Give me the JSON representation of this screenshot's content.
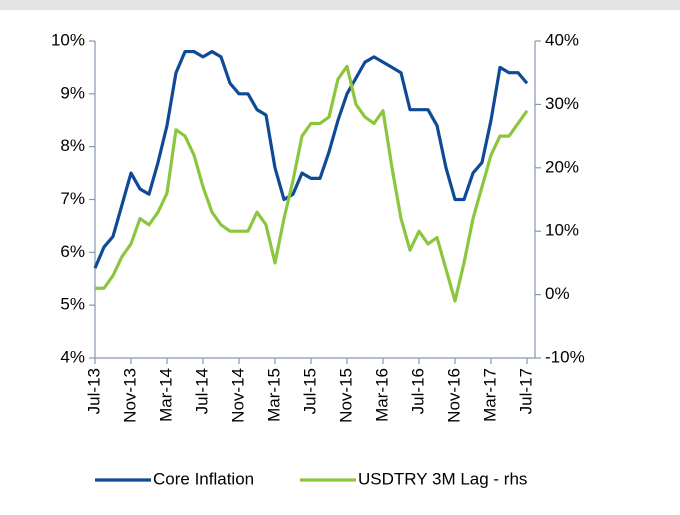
{
  "chart_data": {
    "type": "line",
    "categories": [
      "Jul-13",
      null,
      null,
      null,
      "Nov-13",
      null,
      null,
      null,
      "Mar-14",
      null,
      null,
      null,
      "Jul-14",
      null,
      null,
      null,
      "Nov-14",
      null,
      null,
      null,
      "Mar-15",
      null,
      null,
      null,
      "Jul-15",
      null,
      null,
      null,
      "Nov-15",
      null,
      null,
      null,
      "Mar-16",
      null,
      null,
      null,
      "Jul-16",
      null,
      null,
      null,
      "Nov-16",
      null,
      null,
      null,
      "Mar-17",
      null,
      null,
      null,
      "Jul-17"
    ],
    "series": [
      {
        "name": "Core Inflation",
        "color": "#0f4a97",
        "values": [
          5.7,
          6.1,
          6.3,
          6.9,
          7.5,
          7.2,
          7.1,
          7.7,
          8.4,
          9.4,
          9.8,
          9.8,
          9.7,
          9.8,
          9.7,
          9.2,
          9.0,
          9.0,
          8.7,
          8.6,
          7.6,
          7.0,
          7.1,
          7.5,
          7.4,
          7.4,
          7.9,
          8.5,
          9.0,
          9.3,
          9.6,
          9.7,
          9.6,
          9.5,
          9.4,
          8.7,
          8.7,
          8.7,
          8.4,
          7.6,
          7.0,
          7.0,
          7.5,
          7.7,
          8.5,
          9.5,
          9.4,
          9.4,
          9.2
        ]
      },
      {
        "name": "USDTRY 3M Lag - rhs",
        "color": "#8cc63e",
        "axis": "y2",
        "values": [
          1,
          1,
          3,
          6,
          8,
          12,
          11,
          13,
          16,
          26,
          25,
          22,
          17,
          13,
          11,
          10,
          10,
          10,
          13,
          11,
          5,
          12,
          18,
          25,
          27,
          27,
          28,
          34,
          36,
          30,
          28,
          27,
          29,
          20,
          12,
          7,
          10,
          8,
          9,
          4,
          -1,
          5,
          12,
          17,
          22,
          25,
          25,
          27,
          29
        ]
      }
    ],
    "ylim": [
      4,
      10
    ],
    "yticks": [
      {
        "value": 4,
        "label": "4%"
      },
      {
        "value": 5,
        "label": "5%"
      },
      {
        "value": 6,
        "label": "6%"
      },
      {
        "value": 7,
        "label": "7%"
      },
      {
        "value": 8,
        "label": "8%"
      },
      {
        "value": 9,
        "label": "9%"
      },
      {
        "value": 10,
        "label": "10%"
      }
    ],
    "y2lim": [
      -10,
      40
    ],
    "y2ticks": [
      {
        "value": -10,
        "label": "-10%"
      },
      {
        "value": 0,
        "label": "0%"
      },
      {
        "value": 10,
        "label": "10%"
      },
      {
        "value": 20,
        "label": "20%"
      },
      {
        "value": 30,
        "label": "30%"
      },
      {
        "value": 40,
        "label": "40%"
      }
    ],
    "legend": "bottom"
  }
}
